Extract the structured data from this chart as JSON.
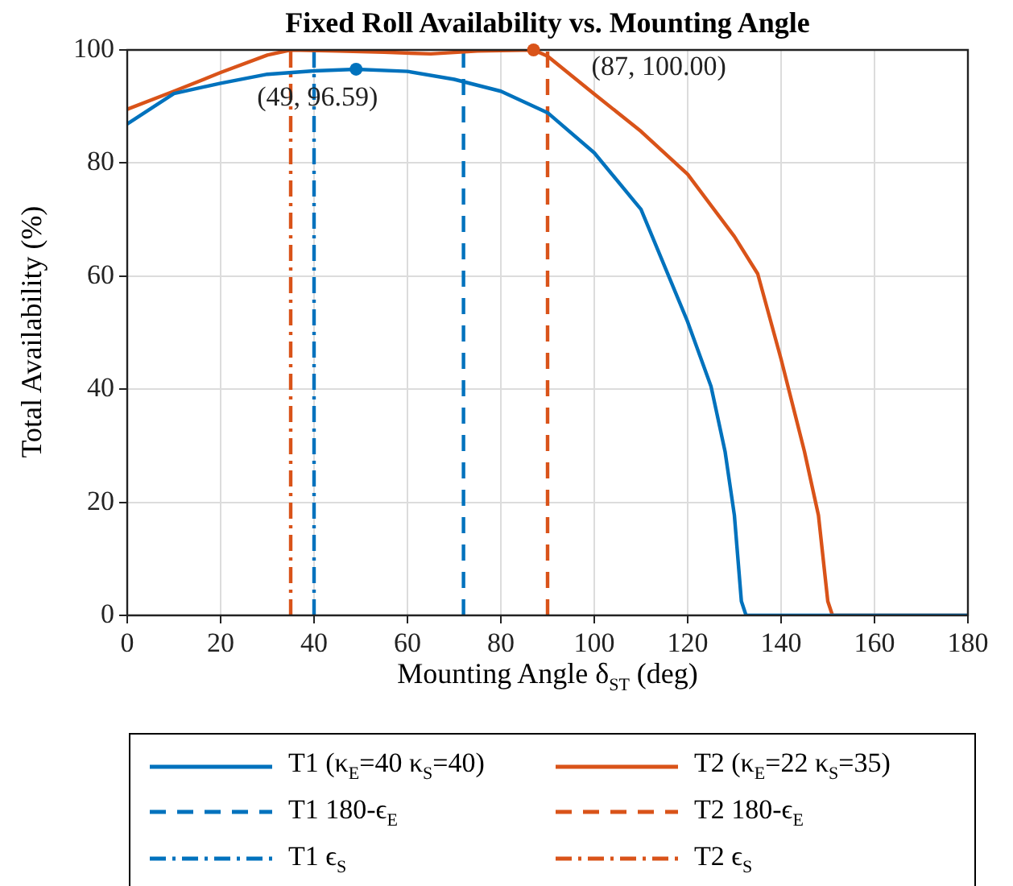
{
  "chart_data": {
    "type": "line",
    "title": "Fixed Roll Availability vs. Mounting Angle",
    "xlabel": "Mounting Angle δ$_{ST}$ (deg)",
    "ylabel": "Total Availability (%)",
    "xlim": [
      0,
      180
    ],
    "xticks": [
      0,
      20,
      40,
      60,
      80,
      100,
      120,
      140,
      160,
      180
    ],
    "ylim": [
      0,
      100
    ],
    "yticks": [
      0,
      20,
      40,
      60,
      80,
      100
    ],
    "grid": true,
    "legend": "bottom",
    "marker": "none",
    "series": [
      {
        "name": "T1 (κ$_{E}$=40 κ$_{S}$=40)",
        "color": "#0072bd",
        "line_style": "solid",
        "x": [
          0,
          10,
          20,
          30,
          40,
          49,
          60,
          70,
          80,
          90,
          100,
          110,
          120,
          125,
          128,
          130,
          131.5,
          132.5,
          180
        ],
        "values": [
          86.9,
          92.3,
          94.1,
          95.7,
          96.3,
          96.59,
          96.2,
          94.8,
          92.7,
          88.9,
          81.8,
          71.8,
          51.9,
          40.5,
          29,
          17.7,
          2.5,
          0,
          0
        ]
      },
      {
        "name": "T2 (κ$_{E}$=22 κ$_{S}$=35)",
        "color": "#d95319",
        "line_style": "solid",
        "x": [
          0,
          10,
          20,
          30,
          35,
          45,
          55,
          65,
          75,
          87,
          90,
          100,
          110,
          120,
          130,
          135,
          140,
          145,
          148,
          150,
          151,
          180
        ],
        "values": [
          89.5,
          92.7,
          96,
          99.1,
          100,
          99.8,
          99.6,
          99.3,
          99.8,
          100,
          98.9,
          92.2,
          85.6,
          78,
          67,
          60.4,
          45.3,
          29,
          17.7,
          2.5,
          0,
          0
        ]
      },
      {
        "name": "T1 180-ϵ$_{E}$",
        "color": "#0072bd",
        "line_style": "dashed",
        "x": [
          72,
          72
        ],
        "values": [
          0,
          100
        ]
      },
      {
        "name": "T2 180-ϵ$_{E}$",
        "color": "#d95319",
        "line_style": "dashed",
        "x": [
          90,
          90
        ],
        "values": [
          0,
          100
        ]
      },
      {
        "name": "T1 ϵ$_{S}$",
        "color": "#0072bd",
        "line_style": "dashdot",
        "x": [
          40,
          40
        ],
        "values": [
          0,
          100
        ]
      },
      {
        "name": "T2 ϵ$_{S}$",
        "color": "#d95319",
        "line_style": "dashdot",
        "x": [
          35,
          35
        ],
        "values": [
          0,
          100
        ]
      }
    ],
    "annotations": [
      {
        "text": "(49, 96.59)",
        "x": 49,
        "y": 96.59
      },
      {
        "text": "(87, 100.00)",
        "x": 87,
        "y": 100
      }
    ]
  }
}
